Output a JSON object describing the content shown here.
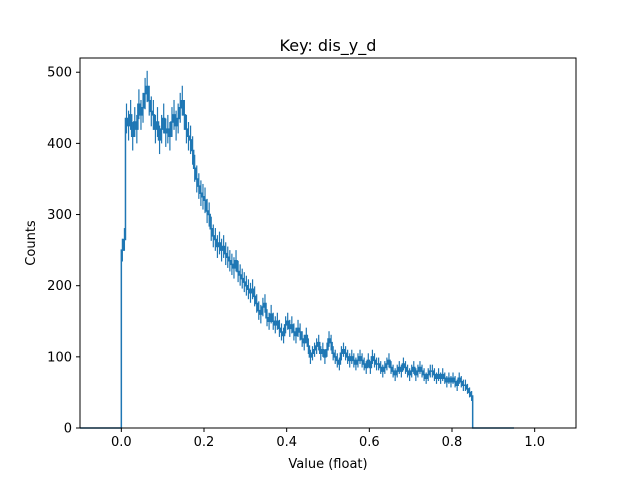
{
  "chart_data": {
    "type": "histogram-step",
    "title": "Key: dis_y_d",
    "xlabel": "Value (float)",
    "ylabel": "Counts",
    "xlim": [
      -0.1,
      1.1
    ],
    "ylim": [
      0,
      520
    ],
    "x_ticks": [
      "0.0",
      "0.2",
      "0.4",
      "0.6",
      "0.8",
      "1.0"
    ],
    "y_ticks": [
      "0",
      "100",
      "200",
      "300",
      "400",
      "500"
    ],
    "grid": false,
    "series": [
      {
        "color": "#1f77b4",
        "bin_edges_start": -0.1,
        "bin_width": 0.005,
        "counts": [
          0,
          0,
          0,
          0,
          0,
          0,
          0,
          0,
          0,
          0,
          0,
          0,
          0,
          0,
          0,
          0,
          0,
          0,
          0,
          0,
          250,
          265,
          435,
          425,
          440,
          410,
          430,
          420,
          455,
          440,
          450,
          470,
          480,
          460,
          445,
          440,
          420,
          430,
          405,
          420,
          435,
          415,
          420,
          410,
          430,
          440,
          425,
          435,
          450,
          460,
          440,
          420,
          410,
          405,
          390,
          365,
          350,
          340,
          330,
          325,
          320,
          305,
          300,
          280,
          270,
          265,
          255,
          260,
          250,
          255,
          245,
          240,
          235,
          230,
          225,
          235,
          220,
          215,
          210,
          205,
          200,
          195,
          190,
          195,
          185,
          175,
          165,
          160,
          170,
          175,
          155,
          150,
          160,
          150,
          145,
          150,
          140,
          135,
          130,
          145,
          150,
          140,
          145,
          135,
          130,
          140,
          135,
          125,
          120,
          130,
          115,
          100,
          105,
          110,
          115,
          120,
          105,
          110,
          100,
          110,
          125,
          120,
          105,
          100,
          95,
          90,
          105,
          110,
          105,
          100,
          95,
          100,
          95,
          90,
          95,
          100,
          95,
          90,
          85,
          95,
          85,
          100,
          95,
          90,
          90,
          85,
          80,
          85,
          90,
          95,
          85,
          80,
          75,
          80,
          85,
          80,
          90,
          85,
          80,
          75,
          80,
          85,
          75,
          80,
          85,
          80,
          75,
          70,
          75,
          80,
          80,
          75,
          70,
          75,
          70,
          75,
          70,
          65,
          70,
          65,
          70,
          65,
          60,
          70,
          65,
          60,
          60,
          55,
          50,
          45,
          0,
          0,
          0,
          0,
          0,
          0,
          0,
          0,
          0,
          0,
          0,
          0,
          0,
          0,
          0,
          0,
          0,
          0,
          0,
          0
        ],
        "errors": [
          0,
          0,
          0,
          0,
          0,
          0,
          0,
          0,
          0,
          0,
          0,
          0,
          0,
          0,
          0,
          0,
          0,
          0,
          0,
          0,
          16,
          16,
          21,
          21,
          21,
          20,
          21,
          20,
          21,
          21,
          21,
          22,
          22,
          21,
          21,
          21,
          20,
          21,
          20,
          20,
          21,
          20,
          20,
          20,
          21,
          21,
          21,
          21,
          21,
          21,
          21,
          20,
          20,
          20,
          20,
          19,
          19,
          18,
          18,
          18,
          18,
          17,
          17,
          17,
          16,
          16,
          16,
          16,
          16,
          16,
          16,
          15,
          15,
          15,
          15,
          15,
          15,
          15,
          14,
          14,
          14,
          14,
          14,
          14,
          14,
          13,
          13,
          13,
          13,
          13,
          12,
          12,
          13,
          12,
          12,
          12,
          12,
          12,
          11,
          12,
          12,
          12,
          12,
          12,
          11,
          12,
          12,
          11,
          11,
          11,
          11,
          10,
          10,
          10,
          11,
          11,
          10,
          10,
          10,
          10,
          11,
          11,
          10,
          10,
          10,
          9,
          10,
          10,
          10,
          10,
          10,
          10,
          10,
          9,
          10,
          10,
          10,
          9,
          9,
          10,
          9,
          10,
          10,
          9,
          9,
          9,
          9,
          9,
          9,
          10,
          9,
          9,
          9,
          9,
          9,
          9,
          9,
          9,
          9,
          9,
          9,
          9,
          9,
          9,
          9,
          9,
          9,
          8,
          9,
          9,
          9,
          9,
          8,
          9,
          8,
          9,
          8,
          8,
          8,
          8,
          8,
          8,
          8,
          8,
          8,
          8,
          8,
          7,
          7,
          7,
          0,
          0,
          0,
          0,
          0,
          0,
          0,
          0,
          0,
          0,
          0,
          0,
          0,
          0,
          0,
          0,
          0,
          0,
          0,
          0
        ]
      }
    ]
  }
}
